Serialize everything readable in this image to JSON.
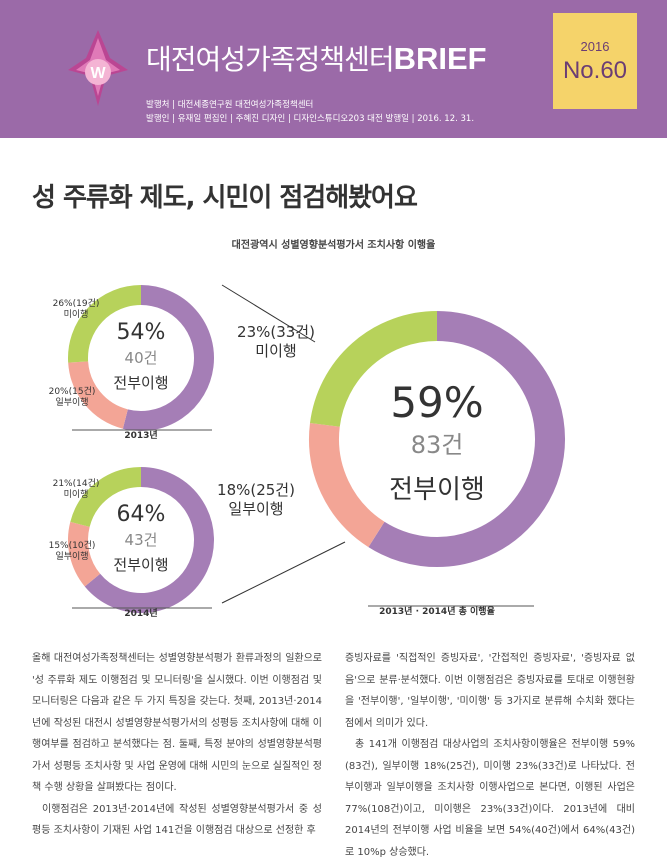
{
  "header": {
    "brand_title": "대전여성가족정책센터",
    "brand_suffix": "BRIEF",
    "meta_line1": "발행처 | 대전세종연구원 대전여성가족정책센터",
    "meta_line2": "발행인 | 유재일   편집인 | 주혜진   디자인 | 디자인스튜디오203 대전   발행일 | 2016. 12. 31.",
    "issue_year": "2016",
    "issue_no": "No.60"
  },
  "headline": "성 주류화 제도, 시민이 점검해봤어요",
  "chart_title": "대전광역시 성별영향분석평가서 조치사항 이행율",
  "colors": {
    "complete": "#a57eb6",
    "partial": "#f3a596",
    "none": "#b7d25b",
    "header": "#9b6aa8"
  },
  "chart_data": [
    {
      "type": "pie",
      "label": "2013년",
      "center_pct": "54%",
      "center_count": "40건",
      "center_label": "전부이행",
      "slices": [
        {
          "name": "전부이행",
          "value": 54,
          "count": 40
        },
        {
          "name": "일부이행",
          "value": 20,
          "count": 15,
          "label_line1": "20%(15건)",
          "label_line2": "일부이행"
        },
        {
          "name": "미이행",
          "value": 26,
          "count": 19,
          "label_line1": "26%(19건)",
          "label_line2": "미이행"
        }
      ]
    },
    {
      "type": "pie",
      "label": "2014년",
      "center_pct": "64%",
      "center_count": "43건",
      "center_label": "전부이행",
      "slices": [
        {
          "name": "전부이행",
          "value": 64,
          "count": 43
        },
        {
          "name": "일부이행",
          "value": 15,
          "count": 10,
          "label_line1": "15%(10건)",
          "label_line2": "일부이행"
        },
        {
          "name": "미이행",
          "value": 21,
          "count": 14,
          "label_line1": "21%(14건)",
          "label_line2": "미이행"
        }
      ]
    },
    {
      "type": "pie",
      "label": "2013년 · 2014년 총 이행율",
      "center_pct": "59%",
      "center_count": "83건",
      "center_label": "전부이행",
      "slices": [
        {
          "name": "전부이행",
          "value": 59,
          "count": 83
        },
        {
          "name": "일부이행",
          "value": 18,
          "count": 25,
          "label_line1": "18%(25건)",
          "label_line2": "일부이행"
        },
        {
          "name": "미이행",
          "value": 23,
          "count": 33,
          "label_line1": "23%(33건)",
          "label_line2": "미이행"
        }
      ]
    }
  ],
  "body": {
    "col1_p1": "올해 대전여성가족정책센터는 성별영향분석평가 환류과정의 일환으로 '성 주류화 제도 이행점검 및 모니터링'을 실시했다. 이번 이행점검 및 모니터링은 다음과 같은 두 가지 특징을 갖는다. 첫째, 2013년·2014년에 작성된 대전시 성별영향분석평가서의 성평등 조치사항에 대해 이행여부를 점검하고 분석했다는 점. 둘째, 특정 분야의 성별영향분석평가서 성평등 조치사항 및 사업 운영에 대해 시민의 눈으로 실질적인 정책 수행 상황을 살펴봤다는 점이다.",
    "col1_p2": "이행점검은 2013년·2014년에 작성된 성별영향분석평가서 중 성평등 조치사항이 기재된 사업 141건을 이행점검 대상으로 선정한 후",
    "col2_p1": "증빙자료를 '직접적인 증빙자료', '간접적인 증빙자료', '증빙자료 없음'으로 분류·분석했다. 이번 이행점검은 증빙자료를 토대로 이행현황을 '전부이행', '일부이행', '미이행' 등 3가지로 분류해 수치화 했다는 점에서 의미가 있다.",
    "col2_p2": "총 141개 이행점검 대상사업의 조치사항이행율은 전부이행 59%(83건), 일부이행 18%(25건), 미이행 23%(33건)로 나타났다. 전부이행과 일부이행을 조치사항 이행사업으로 본다면, 이행된 사업은 77%(108건)이고, 미이행은 23%(33건)이다. 2013년에 대비 2014년의 전부이행 사업 비율을 보면 54%(40건)에서 64%(43건)로 10%p 상승했다."
  }
}
